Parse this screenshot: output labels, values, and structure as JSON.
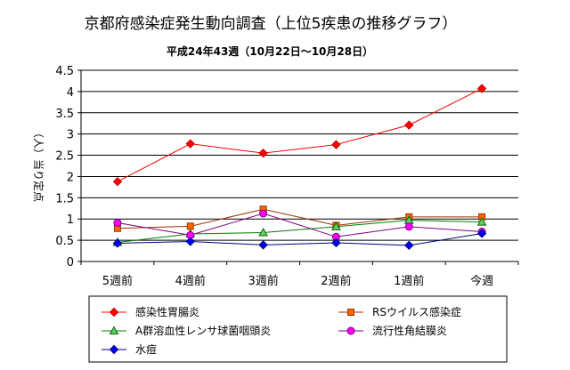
{
  "chart_data": {
    "type": "line",
    "title": "京都府感染症発生動向調査（上位5疾患の推移グラフ）",
    "subtitle": "平成24年43週（10月22日～10月28日）",
    "ylabel": "（人）当り定点",
    "xlabel": "",
    "categories": [
      "5週前",
      "4週前",
      "3週前",
      "2週前",
      "1週前",
      "今週"
    ],
    "ylim": [
      0,
      4.5
    ],
    "yticks": [
      "0",
      "0.5",
      "1",
      "1.5",
      "2",
      "2.5",
      "3",
      "3.5",
      "4",
      "4.5"
    ],
    "grid": true,
    "legend_position": "bottom",
    "series": [
      {
        "name": "感染性胃腸炎",
        "marker": "diamond",
        "color": "#ff0000",
        "marker_fill": "#ff0000",
        "marker_stroke": "#cc0000",
        "values": [
          1.88,
          2.77,
          2.55,
          2.75,
          3.21,
          4.07
        ]
      },
      {
        "name": "RSウイルス感染症",
        "marker": "square",
        "color": "#993300",
        "marker_fill": "#ff6600",
        "marker_stroke": "#993300",
        "values": [
          0.78,
          0.83,
          1.23,
          0.85,
          1.05,
          1.05
        ]
      },
      {
        "name": "A群溶血性レンサ球菌咽頭炎",
        "marker": "triangle",
        "color": "#008000",
        "marker_fill": "#66cc66",
        "marker_stroke": "#006600",
        "values": [
          0.45,
          0.65,
          0.68,
          0.82,
          0.97,
          0.93
        ]
      },
      {
        "name": "流行性角結膜炎",
        "marker": "circle",
        "color": "#800080",
        "marker_fill": "#ff00ff",
        "marker_stroke": "#800080",
        "values": [
          0.91,
          0.62,
          1.13,
          0.58,
          0.82,
          0.7
        ]
      },
      {
        "name": "水痘",
        "marker": "diamond",
        "color": "#000080",
        "marker_fill": "#0000ff",
        "marker_stroke": "#000080",
        "values": [
          0.43,
          0.47,
          0.39,
          0.44,
          0.38,
          0.66
        ]
      }
    ]
  }
}
